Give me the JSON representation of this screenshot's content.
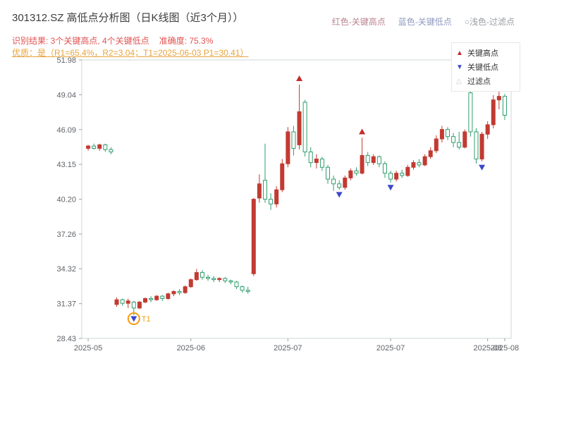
{
  "header": {
    "title": "301312.SZ 高低点分析图（日K线图（近3个月））",
    "inline_legend": [
      {
        "label": "红色-关键高点",
        "color": "#bb8490"
      },
      {
        "label": "蓝色-关键低点",
        "color": "#8f9ac1"
      },
      {
        "label": "○浅色-过滤点",
        "color": "#9aa0a6"
      }
    ],
    "result_label": "识别结果: 3个关键高点, 4个关键低点",
    "accuracy_label": "准确度: 75.3%",
    "quality_line": "优质：是（R1=65.4%，R2=3.04；T1=2025-06-03 P1=30.41）"
  },
  "chart_data": {
    "type": "candlestick",
    "title": "301312.SZ 高低点分析图（日K线图（近3个月））",
    "ylim": [
      28.43,
      51.98
    ],
    "y_ticks": [
      51.98,
      49.04,
      46.09,
      43.15,
      40.2,
      37.26,
      34.32,
      31.37,
      28.43
    ],
    "x_ticks": [
      {
        "i": 0,
        "label": "2025-05"
      },
      {
        "i": 18,
        "label": "2025-06"
      },
      {
        "i": 35,
        "label": "2025-07"
      },
      {
        "i": 53,
        "label": "2025-07"
      },
      {
        "i": 70,
        "label": "2025-08"
      },
      {
        "i": 73,
        "label": "2025-08"
      }
    ],
    "candle_format": [
      "open",
      "high",
      "low",
      "close"
    ],
    "candles": [
      [
        44.5,
        44.8,
        44.3,
        44.7
      ],
      [
        44.7,
        44.9,
        44.4,
        44.5
      ],
      [
        44.5,
        44.9,
        44.3,
        44.8
      ],
      [
        44.8,
        44.9,
        44.2,
        44.4
      ],
      [
        44.4,
        44.6,
        44.0,
        44.2
      ],
      [
        31.3,
        31.9,
        31.1,
        31.7
      ],
      [
        31.7,
        31.8,
        31.2,
        31.4
      ],
      [
        31.4,
        31.8,
        31.0,
        31.6
      ],
      [
        31.5,
        31.6,
        30.4,
        31.0
      ],
      [
        31.0,
        31.6,
        30.9,
        31.5
      ],
      [
        31.5,
        31.9,
        31.4,
        31.8
      ],
      [
        31.8,
        32.0,
        31.5,
        31.7
      ],
      [
        31.7,
        32.1,
        31.6,
        32.0
      ],
      [
        32.0,
        32.1,
        31.6,
        31.8
      ],
      [
        31.8,
        32.3,
        31.7,
        32.2
      ],
      [
        32.2,
        32.5,
        32.0,
        32.4
      ],
      [
        32.4,
        32.6,
        32.1,
        32.3
      ],
      [
        32.3,
        32.9,
        32.2,
        32.8
      ],
      [
        32.8,
        33.5,
        32.7,
        33.4
      ],
      [
        33.4,
        34.3,
        33.3,
        34.0
      ],
      [
        34.0,
        34.2,
        33.4,
        33.6
      ],
      [
        33.6,
        33.8,
        33.3,
        33.5
      ],
      [
        33.5,
        33.7,
        33.2,
        33.4
      ],
      [
        33.4,
        33.6,
        33.2,
        33.5
      ],
      [
        33.5,
        33.6,
        33.1,
        33.3
      ],
      [
        33.3,
        33.4,
        33.0,
        33.2
      ],
      [
        33.2,
        33.3,
        32.6,
        32.8
      ],
      [
        32.8,
        32.9,
        32.3,
        32.5
      ],
      [
        32.5,
        32.8,
        32.2,
        32.4
      ],
      [
        33.9,
        40.3,
        33.7,
        40.2
      ],
      [
        40.3,
        42.3,
        39.9,
        41.5
      ],
      [
        41.8,
        44.9,
        39.9,
        40.2
      ],
      [
        40.2,
        40.7,
        39.3,
        39.8
      ],
      [
        39.8,
        41.3,
        39.5,
        41.0
      ],
      [
        41.0,
        43.6,
        40.8,
        43.2
      ],
      [
        43.2,
        46.3,
        42.9,
        45.9
      ],
      [
        45.9,
        46.4,
        43.9,
        44.5
      ],
      [
        44.8,
        49.9,
        44.4,
        47.6
      ],
      [
        48.4,
        48.6,
        43.8,
        44.2
      ],
      [
        44.2,
        44.6,
        42.9,
        43.3
      ],
      [
        43.3,
        44.0,
        42.8,
        43.6
      ],
      [
        43.6,
        43.8,
        42.6,
        42.9
      ],
      [
        42.9,
        43.1,
        41.5,
        41.9
      ],
      [
        41.9,
        42.2,
        40.9,
        41.5
      ],
      [
        41.5,
        41.8,
        41.0,
        41.2
      ],
      [
        41.2,
        42.2,
        41.0,
        42.0
      ],
      [
        42.0,
        42.8,
        41.8,
        42.6
      ],
      [
        42.6,
        42.9,
        42.2,
        42.4
      ],
      [
        42.4,
        45.4,
        42.3,
        43.9
      ],
      [
        43.9,
        44.2,
        43.0,
        43.3
      ],
      [
        43.3,
        44.0,
        43.1,
        43.8
      ],
      [
        43.8,
        43.9,
        42.9,
        43.2
      ],
      [
        43.2,
        43.4,
        42.0,
        42.4
      ],
      [
        42.4,
        42.6,
        41.6,
        41.9
      ],
      [
        41.9,
        42.6,
        41.7,
        42.4
      ],
      [
        42.4,
        42.7,
        42.0,
        42.2
      ],
      [
        42.2,
        43.1,
        42.1,
        42.9
      ],
      [
        42.9,
        43.5,
        42.7,
        43.3
      ],
      [
        43.3,
        43.6,
        42.9,
        43.1
      ],
      [
        43.1,
        44.0,
        43.0,
        43.8
      ],
      [
        43.8,
        44.6,
        43.6,
        44.3
      ],
      [
        44.3,
        45.6,
        44.1,
        45.3
      ],
      [
        45.3,
        46.4,
        45.0,
        46.1
      ],
      [
        46.1,
        46.3,
        45.2,
        45.5
      ],
      [
        45.5,
        45.8,
        44.6,
        45.0
      ],
      [
        45.0,
        45.9,
        44.4,
        44.6
      ],
      [
        44.6,
        46.1,
        44.5,
        45.9
      ],
      [
        49.2,
        49.6,
        45.5,
        45.9
      ],
      [
        45.9,
        46.2,
        43.2,
        43.6
      ],
      [
        43.6,
        45.9,
        43.4,
        45.7
      ],
      [
        45.7,
        46.8,
        45.3,
        46.5
      ],
      [
        46.5,
        49.0,
        46.2,
        48.6
      ],
      [
        48.6,
        49.4,
        47.8,
        48.9
      ],
      [
        48.9,
        49.1,
        46.9,
        47.3
      ]
    ],
    "key_highs": [
      {
        "index": 37,
        "price": 50.4
      },
      {
        "index": 48,
        "price": 45.9
      },
      {
        "index": 67,
        "price": 50.1
      }
    ],
    "key_lows": [
      {
        "index": 8,
        "price": 30.1,
        "annotation": "T1"
      },
      {
        "index": 44,
        "price": 40.6
      },
      {
        "index": 53,
        "price": 41.2
      },
      {
        "index": 69,
        "price": 42.9
      }
    ],
    "legend": [
      {
        "label": "关键高点",
        "marker": "triangle-up",
        "color": "#c42b2b"
      },
      {
        "label": "关键低点",
        "marker": "triangle-down",
        "color": "#3b48c8"
      },
      {
        "label": "过滤点",
        "marker": "triangle-hollow",
        "color": "#c3c9cf"
      }
    ],
    "colors": {
      "up": "#c23a32",
      "down": "#2f9e6e",
      "high_marker": "#c42b2b",
      "low_marker": "#3b48c8",
      "annotation": "#f39c12",
      "result_text": "#e25352",
      "quality_text": "#e8a33d"
    }
  }
}
